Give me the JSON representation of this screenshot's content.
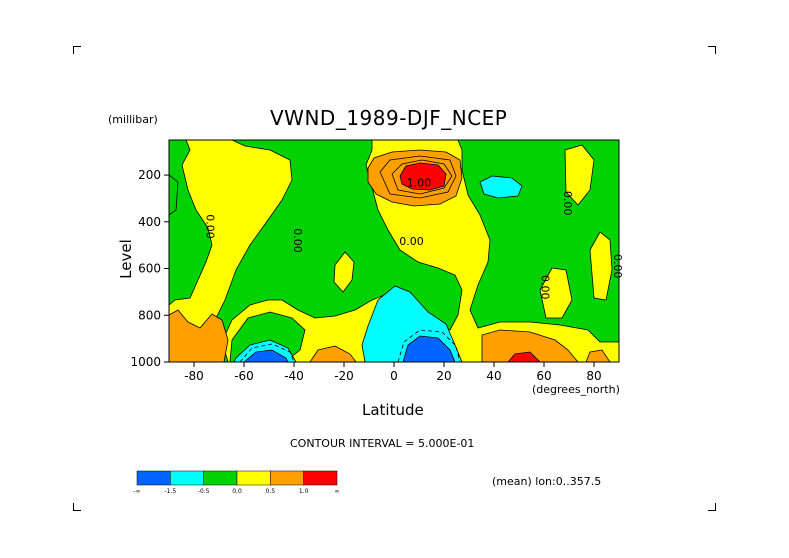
{
  "chart_data": {
    "type": "heatmap",
    "title": "VWND_1989-DJF_NCEP",
    "xlabel": "Latitude",
    "x_unit": "(degrees_north)",
    "ylabel": "Level",
    "y_unit": "(millibar)",
    "xlim": [
      -90,
      90
    ],
    "ylim": [
      1000,
      50
    ],
    "x_ticks": [
      "-80",
      "-60",
      "-40",
      "-20",
      "0",
      "20",
      "40",
      "60",
      "80"
    ],
    "x_tick_values": [
      -80,
      -60,
      -40,
      -20,
      0,
      20,
      40,
      60,
      80
    ],
    "y_ticks": [
      "200",
      "400",
      "600",
      "800",
      "1000"
    ],
    "y_tick_values": [
      200,
      400,
      600,
      800,
      1000
    ],
    "contour_interval_text": "CONTOUR INTERVAL = 5.000E-01",
    "mean_text": "(mean) lon:0..357.5",
    "contour_labels": [
      {
        "text": "1.00",
        "lat": 10,
        "lev": 250
      },
      {
        "text": "0.00",
        "lat": 7,
        "lev": 500
      },
      {
        "text": "0.00",
        "lat": -75,
        "lev": 420
      },
      {
        "text": "0.00",
        "lat": -40,
        "lev": 480
      },
      {
        "text": "0.00",
        "lat": 59,
        "lev": 680
      },
      {
        "text": "0.00",
        "lat": 68,
        "lev": 320
      },
      {
        "text": "0.00",
        "lat": 88,
        "lev": 590
      }
    ],
    "colorbar": {
      "colors": [
        "#0064ff",
        "#00ffff",
        "#00d200",
        "#ffff00",
        "#ffa000",
        "#ff0000"
      ],
      "labels": [
        "-∞",
        "-1.5",
        "-0.5",
        "0.0",
        "0.5",
        "1.0",
        "∞"
      ]
    }
  }
}
